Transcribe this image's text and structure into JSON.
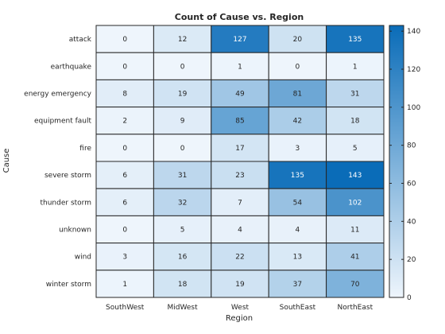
{
  "chart_data": {
    "type": "heatmap",
    "title": "Count of Cause vs. Region",
    "xlabel": "Region",
    "ylabel": "Cause",
    "x": [
      "SouthWest",
      "MidWest",
      "West",
      "SouthEast",
      "NorthEast"
    ],
    "y": [
      "attack",
      "earthquake",
      "energy emergency",
      "equipment fault",
      "fire",
      "severe storm",
      "thunder storm",
      "unknown",
      "wind",
      "winter storm"
    ],
    "values": [
      [
        0,
        12,
        127,
        20,
        135
      ],
      [
        0,
        0,
        1,
        0,
        1
      ],
      [
        8,
        19,
        49,
        81,
        31
      ],
      [
        2,
        9,
        85,
        42,
        18
      ],
      [
        0,
        0,
        17,
        3,
        5
      ],
      [
        6,
        31,
        23,
        135,
        143
      ],
      [
        6,
        32,
        7,
        54,
        102
      ],
      [
        0,
        5,
        4,
        4,
        11
      ],
      [
        3,
        16,
        22,
        13,
        41
      ],
      [
        1,
        18,
        19,
        37,
        70
      ]
    ],
    "colorbar": {
      "range": [
        0,
        143
      ],
      "ticks": [
        0,
        20,
        40,
        60,
        80,
        100,
        120,
        140
      ],
      "colormap": [
        "#eef5fc",
        "#0a6cb8"
      ]
    }
  }
}
